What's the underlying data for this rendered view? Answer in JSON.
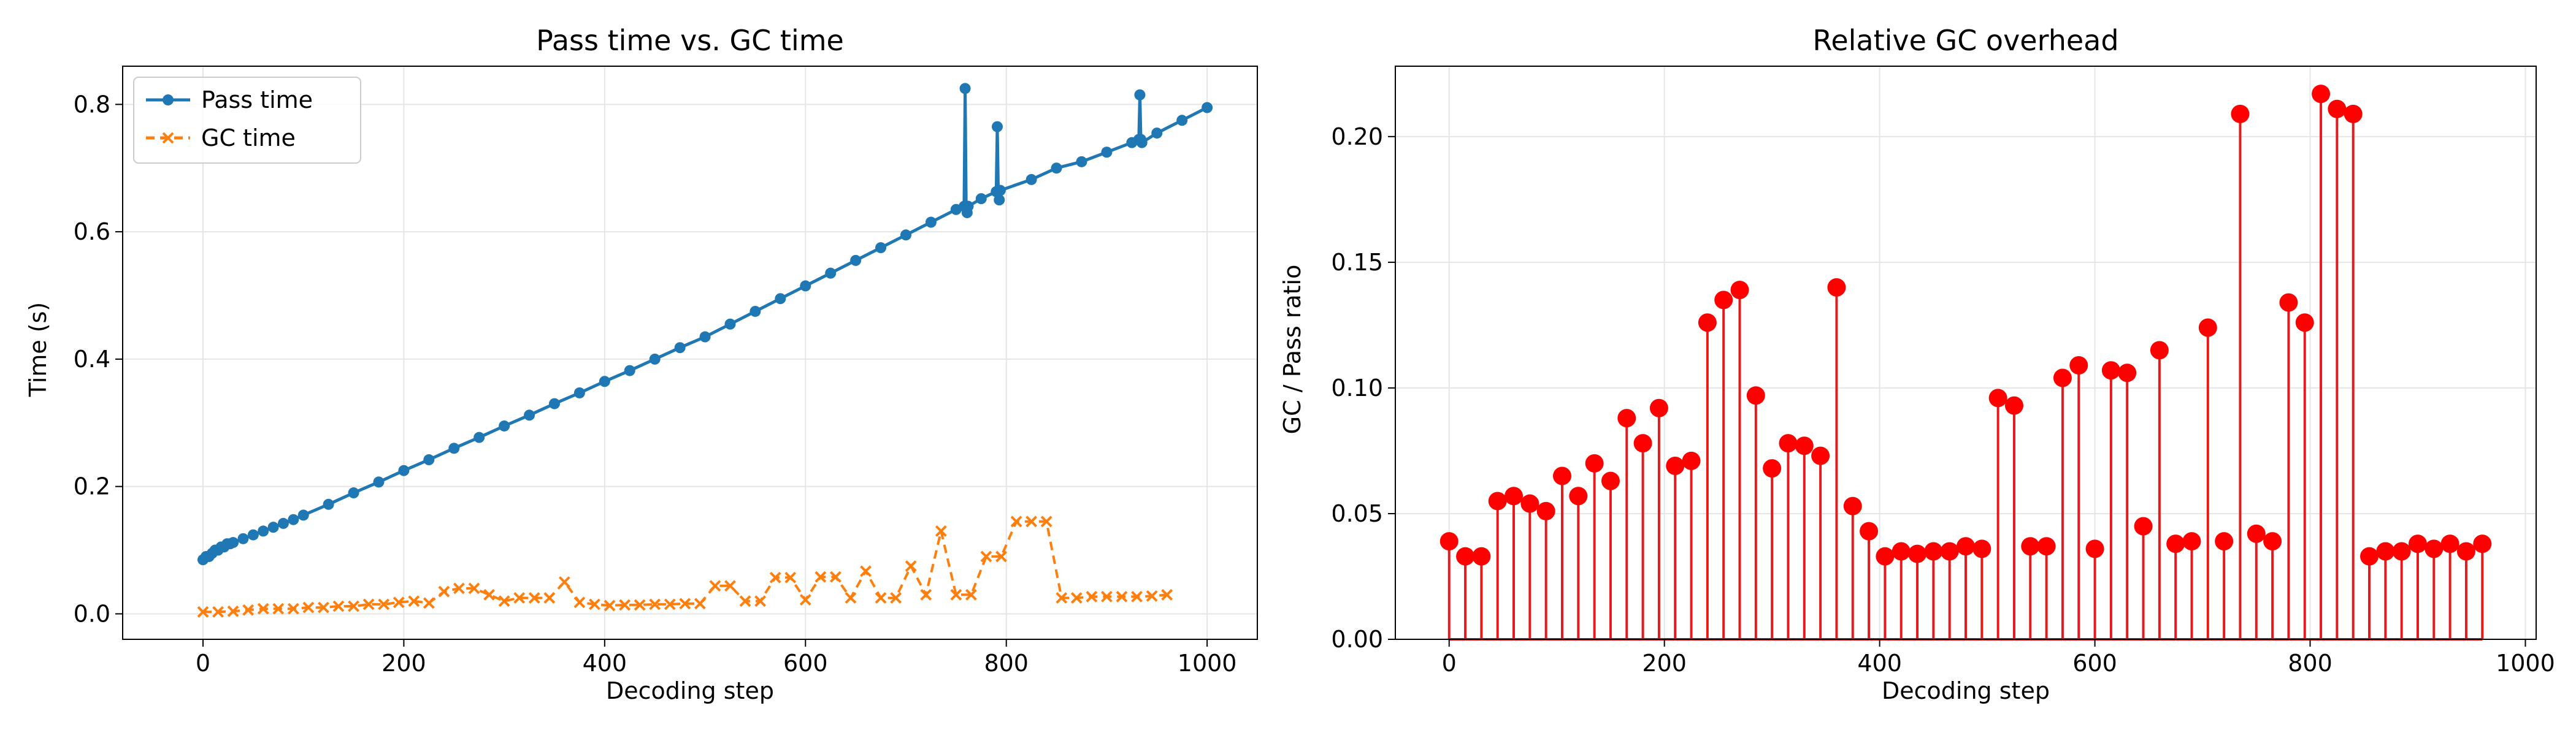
{
  "chart_data": [
    {
      "type": "line",
      "title": "Pass time vs. GC time",
      "xlabel": "Decoding step",
      "ylabel": "Time (s)",
      "xlim": [
        -80,
        1050
      ],
      "ylim": [
        -0.04,
        0.86
      ],
      "xticks": [
        0,
        200,
        400,
        600,
        800,
        1000
      ],
      "yticks": [
        0.0,
        0.2,
        0.4,
        0.6,
        0.8
      ],
      "xtick_labels": [
        "0",
        "200",
        "400",
        "600",
        "800",
        "1000"
      ],
      "ytick_labels": [
        "0.0",
        "0.2",
        "0.4",
        "0.6",
        "0.8"
      ],
      "grid": true,
      "legend_position": "top-left",
      "series": [
        {
          "name": "Pass time",
          "color": "#1f77b4",
          "marker": "circle",
          "linestyle": "solid",
          "x": [
            0,
            3,
            6,
            9,
            12,
            15,
            18,
            21,
            24,
            27,
            30,
            40,
            50,
            60,
            70,
            80,
            90,
            100,
            125,
            150,
            175,
            200,
            225,
            250,
            275,
            300,
            325,
            350,
            375,
            400,
            425,
            450,
            475,
            500,
            525,
            550,
            575,
            600,
            625,
            650,
            675,
            700,
            725,
            750,
            758,
            759,
            760,
            761,
            762,
            775,
            790,
            791,
            792,
            793,
            794,
            825,
            850,
            875,
            900,
            925,
            932,
            933,
            934,
            935,
            950,
            975,
            1000
          ],
          "values": [
            0.085,
            0.09,
            0.09,
            0.095,
            0.1,
            0.1,
            0.105,
            0.105,
            0.11,
            0.11,
            0.112,
            0.118,
            0.124,
            0.13,
            0.136,
            0.142,
            0.148,
            0.155,
            0.172,
            0.19,
            0.207,
            0.225,
            0.242,
            0.26,
            0.277,
            0.295,
            0.312,
            0.33,
            0.347,
            0.365,
            0.382,
            0.4,
            0.418,
            0.435,
            0.455,
            0.475,
            0.495,
            0.515,
            0.535,
            0.555,
            0.575,
            0.595,
            0.615,
            0.635,
            0.64,
            0.825,
            0.64,
            0.63,
            0.64,
            0.652,
            0.663,
            0.765,
            0.663,
            0.65,
            0.665,
            0.682,
            0.7,
            0.71,
            0.725,
            0.74,
            0.745,
            0.815,
            0.745,
            0.74,
            0.755,
            0.775,
            0.795
          ]
        },
        {
          "name": "GC time",
          "color": "#ff7f0e",
          "marker": "x",
          "linestyle": "dashed",
          "x": [
            0,
            15,
            30,
            45,
            60,
            75,
            90,
            105,
            120,
            135,
            150,
            165,
            180,
            195,
            210,
            225,
            240,
            255,
            270,
            285,
            300,
            315,
            330,
            345,
            360,
            375,
            390,
            405,
            420,
            435,
            450,
            465,
            480,
            495,
            510,
            525,
            540,
            555,
            570,
            585,
            600,
            615,
            630,
            645,
            660,
            675,
            690,
            705,
            720,
            735,
            750,
            765,
            780,
            795,
            810,
            825,
            840,
            855,
            870,
            885,
            900,
            915,
            930,
            945,
            960
          ],
          "values": [
            0.003,
            0.003,
            0.004,
            0.006,
            0.008,
            0.008,
            0.008,
            0.01,
            0.01,
            0.012,
            0.012,
            0.015,
            0.015,
            0.018,
            0.02,
            0.017,
            0.035,
            0.04,
            0.04,
            0.03,
            0.02,
            0.025,
            0.025,
            0.025,
            0.05,
            0.018,
            0.015,
            0.013,
            0.014,
            0.014,
            0.015,
            0.015,
            0.016,
            0.016,
            0.044,
            0.044,
            0.02,
            0.02,
            0.057,
            0.057,
            0.022,
            0.058,
            0.058,
            0.025,
            0.067,
            0.025,
            0.025,
            0.075,
            0.03,
            0.13,
            0.03,
            0.03,
            0.09,
            0.09,
            0.145,
            0.145,
            0.145,
            0.025,
            0.025,
            0.027,
            0.027,
            0.027,
            0.027,
            0.028,
            0.03
          ]
        }
      ]
    },
    {
      "type": "stem",
      "title": "Relative GC overhead",
      "xlabel": "Decoding step",
      "ylabel": "GC / Pass ratio",
      "xlim": [
        -50,
        1010
      ],
      "ylim": [
        0.0,
        0.228
      ],
      "xticks": [
        0,
        200,
        400,
        600,
        800,
        1000
      ],
      "yticks": [
        0.0,
        0.05,
        0.1,
        0.15,
        0.2
      ],
      "xtick_labels": [
        "0",
        "200",
        "400",
        "600",
        "800",
        "1000"
      ],
      "ytick_labels": [
        "0.00",
        "0.05",
        "0.10",
        "0.15",
        "0.20"
      ],
      "grid": true,
      "color": "#e41a1c",
      "x": [
        0,
        15,
        30,
        45,
        60,
        75,
        90,
        105,
        120,
        135,
        150,
        165,
        180,
        195,
        210,
        225,
        240,
        255,
        270,
        285,
        300,
        315,
        330,
        345,
        360,
        375,
        390,
        405,
        420,
        435,
        450,
        465,
        480,
        495,
        510,
        525,
        540,
        555,
        570,
        585,
        600,
        615,
        630,
        645,
        660,
        675,
        690,
        705,
        720,
        735,
        750,
        765,
        780,
        795,
        810,
        825,
        840,
        855,
        870,
        885,
        900,
        915,
        930,
        945,
        960
      ],
      "values": [
        0.039,
        0.033,
        0.033,
        0.055,
        0.057,
        0.054,
        0.051,
        0.065,
        0.057,
        0.07,
        0.063,
        0.088,
        0.078,
        0.092,
        0.069,
        0.071,
        0.126,
        0.135,
        0.139,
        0.097,
        0.068,
        0.078,
        0.077,
        0.073,
        0.14,
        0.053,
        0.043,
        0.033,
        0.035,
        0.034,
        0.035,
        0.035,
        0.037,
        0.036,
        0.096,
        0.093,
        0.037,
        0.037,
        0.104,
        0.109,
        0.036,
        0.107,
        0.106,
        0.045,
        0.115,
        0.038,
        0.039,
        0.124,
        0.039,
        0.209,
        0.042,
        0.039,
        0.134,
        0.126,
        0.217,
        0.211,
        0.209,
        0.033,
        0.035,
        0.035,
        0.038,
        0.036,
        0.038,
        0.035,
        0.038
      ]
    }
  ]
}
